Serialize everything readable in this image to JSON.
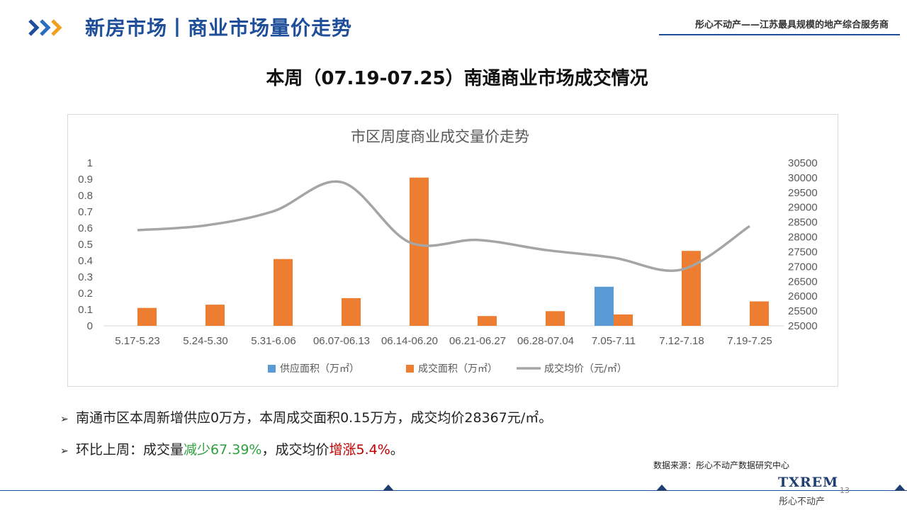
{
  "header": {
    "title": "新房市场丨商业市场量价走势",
    "slogan": "彤心不动产——江苏最具规模的地产综合服务商"
  },
  "page_heading": "本周（07.19-07.25）南通商业市场成交情况",
  "chart_data": {
    "type": "bar",
    "title": "市区周度商业成交量价走势",
    "categories": [
      "5.17-5.23",
      "5.24-5.30",
      "5.31-6.06",
      "06.07-06.13",
      "06.14-06.20",
      "06.21-06.27",
      "06.28-07.04",
      "7.05-7.11",
      "7.12-7.18",
      "7.19-7.25"
    ],
    "series": [
      {
        "name": "供应面积（万㎡）",
        "type": "bar",
        "axis": "left",
        "color": "#5b9bd5",
        "values": [
          0,
          0,
          0,
          0,
          0,
          0,
          0,
          0.24,
          0,
          0
        ]
      },
      {
        "name": "成交面积（万㎡）",
        "type": "bar",
        "axis": "left",
        "color": "#ed7d31",
        "values": [
          0.11,
          0.13,
          0.41,
          0.17,
          0.91,
          0.06,
          0.09,
          0.07,
          0.46,
          0.15
        ]
      },
      {
        "name": "成交均价（元/㎡）",
        "type": "line",
        "axis": "right",
        "color": "#a5a5a5",
        "values": [
          28230,
          28390,
          28870,
          29850,
          27820,
          27900,
          27560,
          27300,
          26900,
          28367
        ]
      }
    ],
    "y_left": {
      "min": 0,
      "max": 1,
      "ticks": [
        "0",
        "0.1",
        "0.2",
        "0.3",
        "0.4",
        "0.5",
        "0.6",
        "0.7",
        "0.8",
        "0.9",
        "1"
      ]
    },
    "y_right": {
      "min": 25000,
      "max": 30500,
      "ticks": [
        "25000",
        "25500",
        "26000",
        "26500",
        "27000",
        "27500",
        "28000",
        "28500",
        "29000",
        "29500",
        "30000",
        "30500"
      ]
    },
    "grid": false,
    "legend": "bottom"
  },
  "bullets": {
    "b1": "南通市区本周新增供应0万方，本周成交面积0.15万方，成交均价28367元/㎡。",
    "b2_prefix": "环比上周：成交量",
    "b2_down": "减少67.39%",
    "b2_mid": "，成交均价",
    "b2_up": "增涨5.4%",
    "b2_suffix": "。"
  },
  "source": "数据来源：彤心不动产数据研究中心",
  "footer": {
    "logo": "TXREM",
    "logo_sub": "彤心不动产",
    "page_number": "13"
  },
  "colors": {
    "brand_blue": "#1f4e9a",
    "down_green": "#2e9f3e",
    "up_red": "#c00000"
  }
}
